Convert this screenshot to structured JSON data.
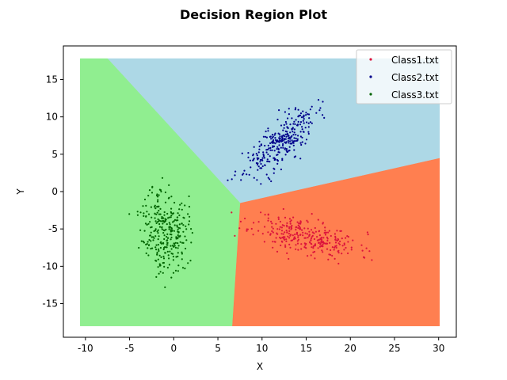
{
  "chart_data": {
    "type": "scatter",
    "title": "Decision Region Plot",
    "xlabel": "X",
    "ylabel": "Y",
    "xlim": [
      -12.5,
      32
    ],
    "ylim": [
      -19.5,
      19.5
    ],
    "xticks": [
      -10,
      -5,
      0,
      5,
      10,
      15,
      20,
      25,
      30
    ],
    "yticks": [
      -15,
      -10,
      -5,
      0,
      5,
      10,
      15
    ],
    "grid": false,
    "legend_position": "top-right",
    "regions": [
      {
        "class": "Class1.txt",
        "color": "#ff7f50",
        "polygon": [
          [
            30.1,
            4.5
          ],
          [
            7.5,
            -1.5
          ],
          [
            6.6,
            -18
          ],
          [
            30.1,
            -18
          ]
        ]
      },
      {
        "class": "Class2.txt",
        "color": "#add8e6",
        "polygon": [
          [
            -7.5,
            17.8
          ],
          [
            30.1,
            17.8
          ],
          [
            30.1,
            4.5
          ],
          [
            7.5,
            -1.5
          ]
        ]
      },
      {
        "class": "Class3.txt",
        "color": "#90ee90",
        "polygon": [
          [
            -10.6,
            17.8
          ],
          [
            -7.5,
            17.8
          ],
          [
            7.5,
            -1.5
          ],
          [
            6.6,
            -18
          ],
          [
            -10.6,
            -18
          ]
        ]
      }
    ],
    "series": [
      {
        "name": "Class1.txt",
        "color": "#dc143c",
        "center": [
          15,
          -6
        ],
        "spread": [
          3.0,
          1.4
        ],
        "corr": -0.55,
        "count": 300,
        "seed": 11
      },
      {
        "name": "Class2.txt",
        "color": "#00008b",
        "center": [
          12,
          6.5
        ],
        "spread": [
          2.0,
          2.2
        ],
        "corr": 0.75,
        "count": 300,
        "seed": 23
      },
      {
        "name": "Class3.txt",
        "color": "#006400",
        "center": [
          -1,
          -5
        ],
        "spread": [
          1.3,
          2.8
        ],
        "corr": -0.1,
        "count": 300,
        "seed": 37
      }
    ]
  }
}
